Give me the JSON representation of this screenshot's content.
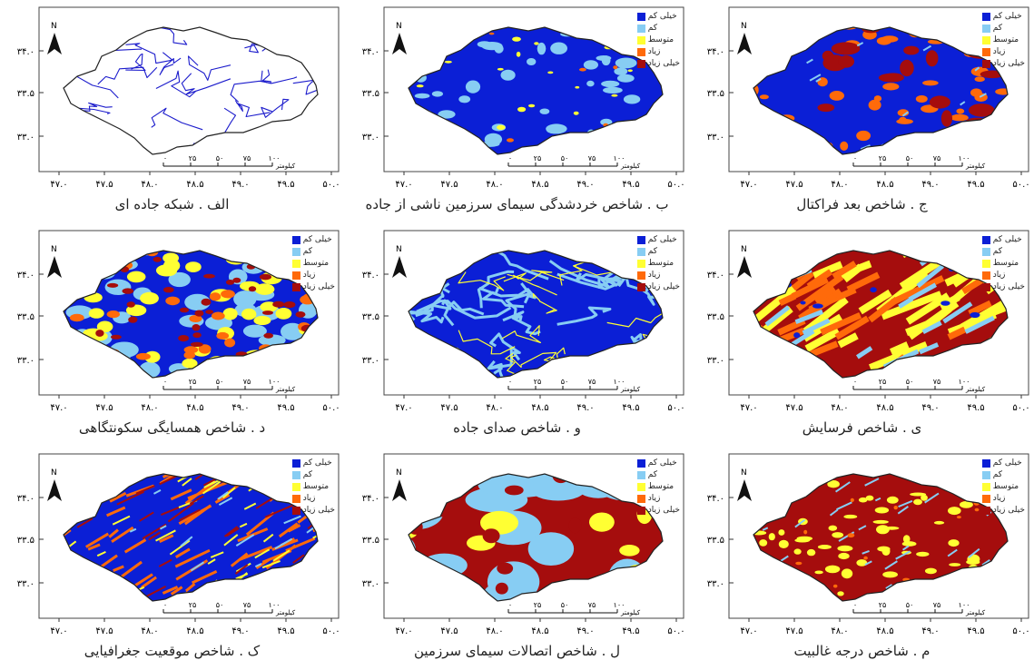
{
  "panels": [
    {
      "id": "alef",
      "caption": "الف . شبکه جاده ای",
      "style": "roads",
      "ylabels": [
        "۳۴.۰",
        "۳۳.۵",
        "۳۳.۰"
      ],
      "xlabels": [
        "۴۷.۰",
        "۴۷.۵",
        "۴۸.۰",
        "۴۸.۵",
        "۴۹.۰",
        "۴۹.۵",
        "۵۰.۰"
      ],
      "legend": []
    },
    {
      "id": "be",
      "caption": "ب . شاخص خردشدگی سیمای سرزمین ناشی از جاده",
      "style": "frag",
      "ylabels": [
        "۳۴.۰",
        "۳۳.۵",
        "۳۳.۰"
      ],
      "xlabels": [
        "۴۷.۰",
        "۴۷.۵",
        "۴۸.۰",
        "۴۸.۵",
        "۴۹.۰",
        "۴۹.۵",
        "۵۰.۰"
      ],
      "legend": [
        "خیلی کم",
        "کم",
        "متوسط",
        "زیاد",
        "خیلی زیاد"
      ]
    },
    {
      "id": "jim",
      "caption": "ج . شاخص بعد فراکتال",
      "style": "fractal",
      "ylabels": [
        "۳۴.۰",
        "۳۳.۵",
        "۳۳.۰"
      ],
      "xlabels": [
        "۴۷.۰",
        "۴۷.۵",
        "۴۸.۰",
        "۴۸.۵",
        "۴۹.۰",
        "۴۹.۵",
        "۵۰.۰"
      ],
      "legend": [
        "خیلی کم",
        "کم",
        "متوسط",
        "زیاد",
        "خیلی زیاد"
      ]
    },
    {
      "id": "dal",
      "caption": "د . شاخص همسایگی سکونتگاهی",
      "style": "settle",
      "ylabels": [
        "۳۴.۰",
        "۳۳.۵",
        "۳۳.۰"
      ],
      "xlabels": [
        "۴۷.۰",
        "۴۷.۵",
        "۴۸.۰",
        "۴۸.۵",
        "۴۹.۰",
        "۴۹.۵",
        "۵۰.۰"
      ],
      "legend": [
        "خیلی کم",
        "کم",
        "متوسط",
        "زیاد",
        "خیلی زیاد"
      ]
    },
    {
      "id": "vav",
      "caption": "و . شاخص صدای جاده",
      "style": "noise",
      "ylabels": [
        "۳۴.۰",
        "۳۳.۵",
        "۳۳.۰"
      ],
      "xlabels": [
        "۴۷.۰",
        "۴۷.۵",
        "۴۸.۰",
        "۴۸.۵",
        "۴۹.۰",
        "۴۹.۵",
        "۵۰.۰"
      ],
      "legend": [
        "خیلی کم",
        "کم",
        "متوسط",
        "زیاد",
        "خیلی زیاد"
      ]
    },
    {
      "id": "ye",
      "caption": "ی . شاخص فرسایش",
      "style": "erosion",
      "ylabels": [
        "۳۴.۰",
        "۳۳.۵",
        "۳۳.۰"
      ],
      "xlabels": [
        "۴۷.۰",
        "۴۷.۵",
        "۴۸.۰",
        "۴۸.۵",
        "۴۹.۰",
        "۴۹.۵",
        "۵۰.۰"
      ],
      "legend": [
        "خیلی کم",
        "کم",
        "متوسط",
        "زیاد",
        "خیلی زیاد"
      ]
    },
    {
      "id": "kaf",
      "caption": "ک . شاخص موقعیت جغرافیایی",
      "style": "geo",
      "ylabels": [
        "۳۴.۰",
        "۳۳.۵",
        "۳۳.۰"
      ],
      "xlabels": [
        "۴۷.۰",
        "۴۷.۵",
        "۴۸.۰",
        "۴۸.۵",
        "۴۹.۰",
        "۴۹.۵",
        "۵۰.۰"
      ],
      "legend": [
        "خیلی کم",
        "کم",
        "متوسط",
        "زیاد",
        "خیلی زیاد"
      ]
    },
    {
      "id": "lam",
      "caption": "ل . شاخص اتصالات سیمای سرزمین",
      "style": "connect",
      "ylabels": [
        "۳۴.۰",
        "۳۳.۵",
        "۳۳.۰"
      ],
      "xlabels": [
        "۴۷.۰",
        "۴۷.۵",
        "۴۸.۰",
        "۴۸.۵",
        "۴۹.۰",
        "۴۹.۵",
        "۵۰.۰"
      ],
      "legend": [
        "خیلی کم",
        "کم",
        "متوسط",
        "زیاد",
        "خیلی زیاد"
      ]
    },
    {
      "id": "mim",
      "caption": "م . شاخص درجه غالبیت",
      "style": "dominance",
      "ylabels": [
        "۳۴.۰",
        "۳۳.۵",
        "۳۳.۰"
      ],
      "xlabels": [
        "۴۷.۰",
        "۴۷.۵",
        "۴۸.۰",
        "۴۸.۵",
        "۴۹.۰",
        "۴۹.۵",
        "۵۰.۰"
      ],
      "legend": [
        "خیلی کم",
        "کم",
        "متوسط",
        "زیاد",
        "خیلی زیاد"
      ]
    }
  ],
  "scalebar": {
    "labels": [
      "۱۰۰",
      "۷۵",
      "۵۰",
      "۲۵",
      "۰"
    ],
    "unit": "کیلومتر"
  },
  "north_label": "N",
  "colors": {
    "very_low": "#0b1fd6",
    "low": "#87cdf3",
    "medium": "#ffff33",
    "high": "#ff6a0a",
    "very_high": "#a50d0d",
    "road": "#1c1ccc",
    "outline": "#222222"
  }
}
